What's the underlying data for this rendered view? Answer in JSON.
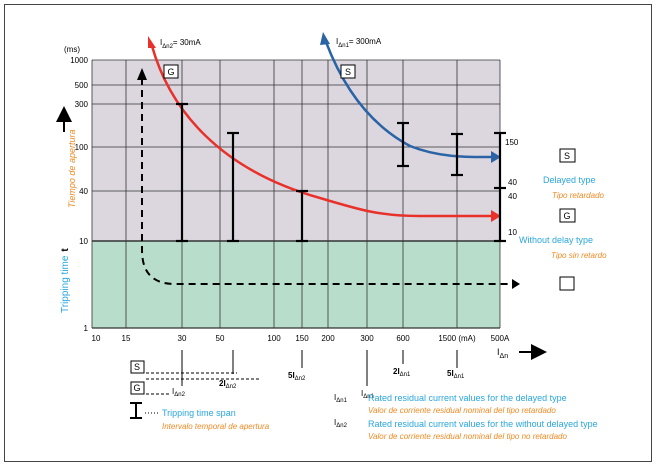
{
  "diagram": {
    "y_unit": "(ms)",
    "y_ticks": [
      "1000",
      "500",
      "300",
      "100",
      "40",
      "10",
      "1"
    ],
    "x_ticks": [
      "10",
      "15",
      "30",
      "50",
      "100",
      "150",
      "200",
      "300",
      "600",
      "1500 (mA)",
      "500A"
    ],
    "x_axis_label": "I",
    "x_axis_sub": "Δn",
    "y_axis_label_en": "Tripping time",
    "y_axis_symbol": "t",
    "y_axis_label_es": "Tiempo de apertura",
    "curve_g_label": "I",
    "curve_g_sub": "Δn2",
    "curve_g_value": "= 30mA",
    "curve_s_label": "I",
    "curve_s_sub": "Δn1",
    "curve_s_value": "= 300mA",
    "box_g": "G",
    "box_s": "S",
    "right_scale": [
      "150",
      "40",
      "40",
      "10"
    ],
    "delayed_en": "Delayed type",
    "delayed_es": "Tipo retardado",
    "nodelay_en": "Without delay type",
    "nodelay_es": "Tipo sin retardo",
    "markers": {
      "i": "I",
      "dn2": "Δn2",
      "dn1": "Δn1",
      "two": "2I",
      "five": "5I"
    },
    "legend": {
      "span_en": "Tripping time span",
      "span_es": "Intervalo temporal de apertura",
      "dn1_en": "Rated residual current values for the delayed type",
      "dn1_es": "Valor de corriente residual nominal del tipo retardado",
      "dn2_en": "Rated residual current values for the without delayed type",
      "dn2_es": "Valor de corriente residual nominal del tipo no retardado"
    }
  },
  "colors": {
    "red_curve": "#e8312a",
    "blue_curve": "#2a64a6",
    "upper_zone": "#dcd7df",
    "lower_zone": "#b8decb",
    "cyan_text": "#29a7dd",
    "orange_text": "#f08a24"
  }
}
